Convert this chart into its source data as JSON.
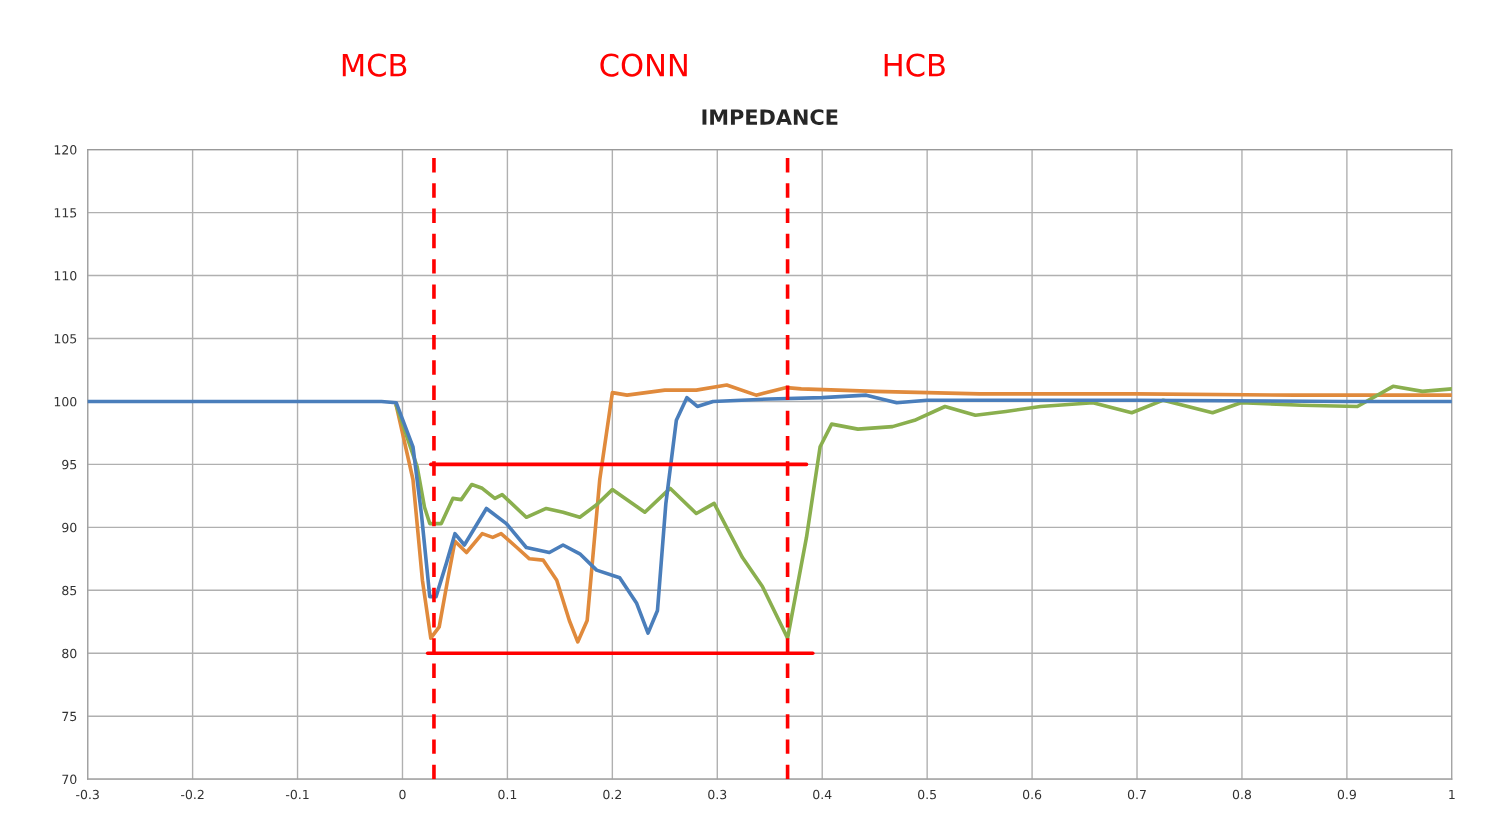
{
  "chart_data": {
    "type": "line",
    "title": "IMPEDANCE",
    "xlim": [
      -0.3,
      1
    ],
    "xticks": [
      -0.3,
      -0.2,
      -0.1,
      0,
      0.1,
      0.2,
      0.3,
      0.4,
      0.5,
      0.6,
      0.7,
      0.8,
      0.9,
      1
    ],
    "ylim": [
      70,
      120
    ],
    "yticks": [
      70,
      75,
      80,
      85,
      90,
      95,
      100,
      105,
      110,
      115,
      120
    ],
    "grid": true,
    "marker": "none",
    "line_style": "solid",
    "annotations": [
      "MCB",
      "CONN",
      "HCB"
    ],
    "ref_lines": [
      {
        "axis": "x",
        "value": 0.03,
        "label": null,
        "color": "#ff0000",
        "line_style": "dashed"
      },
      {
        "axis": "x",
        "value": 0.367,
        "label": null,
        "color": "#ff0000",
        "line_style": "dashed"
      }
    ],
    "series": [
      {
        "color": "#e08a3c",
        "x": [
          -0.006,
          0.01,
          0.019,
          0.027,
          0.035,
          0.043,
          0.05,
          0.061,
          0.076,
          0.086,
          0.094,
          0.109,
          0.121,
          0.134,
          0.147,
          0.159,
          0.167,
          0.176,
          0.188,
          0.2,
          0.214,
          0.25,
          0.28,
          0.309,
          0.337,
          0.366,
          0.38,
          0.45,
          0.55,
          0.7,
          0.85,
          1.0
        ],
        "values": [
          99.7,
          93.8,
          85.8,
          81.2,
          82.1,
          85.8,
          88.9,
          88.0,
          89.5,
          89.2,
          89.5,
          88.4,
          87.5,
          87.4,
          85.8,
          82.6,
          80.9,
          82.6,
          93.8,
          100.7,
          100.5,
          100.9,
          100.9,
          101.3,
          100.5,
          101.1,
          101.0,
          100.8,
          100.6,
          100.6,
          100.5,
          100.5
        ]
      },
      {
        "color": "#8aaf4e",
        "x": [
          -0.006,
          0.014,
          0.021,
          0.026,
          0.037,
          0.048,
          0.056,
          0.066,
          0.076,
          0.088,
          0.095,
          0.118,
          0.137,
          0.153,
          0.169,
          0.185,
          0.2,
          0.231,
          0.255,
          0.28,
          0.297,
          0.324,
          0.343,
          0.367,
          0.385,
          0.398,
          0.409,
          0.434,
          0.467,
          0.488,
          0.517,
          0.546,
          0.575,
          0.608,
          0.658,
          0.695,
          0.725,
          0.772,
          0.799,
          0.857,
          0.91,
          0.944,
          0.972,
          1.0
        ],
        "values": [
          99.7,
          94.8,
          91.6,
          90.3,
          90.3,
          92.3,
          92.2,
          93.4,
          93.1,
          92.3,
          92.6,
          90.8,
          91.5,
          91.2,
          90.8,
          91.8,
          93.0,
          91.2,
          93.1,
          91.1,
          91.9,
          87.6,
          85.3,
          81.2,
          89.2,
          96.4,
          98.2,
          97.8,
          98.0,
          98.5,
          99.6,
          98.9,
          99.2,
          99.6,
          99.9,
          99.1,
          100.1,
          99.1,
          99.9,
          99.7,
          99.6,
          101.2,
          100.8,
          101.0
        ]
      },
      {
        "color": "#4a7ebb",
        "x": [
          -0.3,
          -0.2,
          -0.1,
          -0.02,
          -0.006,
          0.01,
          0.018,
          0.026,
          0.032,
          0.042,
          0.05,
          0.059,
          0.08,
          0.099,
          0.118,
          0.14,
          0.153,
          0.169,
          0.185,
          0.207,
          0.223,
          0.234,
          0.243,
          0.251,
          0.261,
          0.271,
          0.281,
          0.296,
          0.35,
          0.4,
          0.442,
          0.471,
          0.5,
          0.7,
          0.9,
          1.0
        ],
        "values": [
          100,
          100,
          100,
          100,
          99.9,
          96.4,
          91.1,
          84.5,
          84.5,
          87.2,
          89.5,
          88.6,
          91.5,
          90.3,
          88.4,
          88.0,
          88.6,
          87.9,
          86.6,
          86.0,
          84.0,
          81.6,
          83.4,
          91.9,
          98.5,
          100.3,
          99.6,
          100.0,
          100.2,
          100.3,
          100.5,
          99.9,
          100.1,
          100.1,
          100.0,
          100.0
        ]
      },
      {
        "color": "#ff0000",
        "x": [
          0.027,
          0.385
        ],
        "values": [
          95,
          95
        ]
      },
      {
        "color": "#ff0000",
        "x": [
          0.024,
          0.391
        ],
        "values": [
          80,
          80
        ]
      }
    ]
  }
}
